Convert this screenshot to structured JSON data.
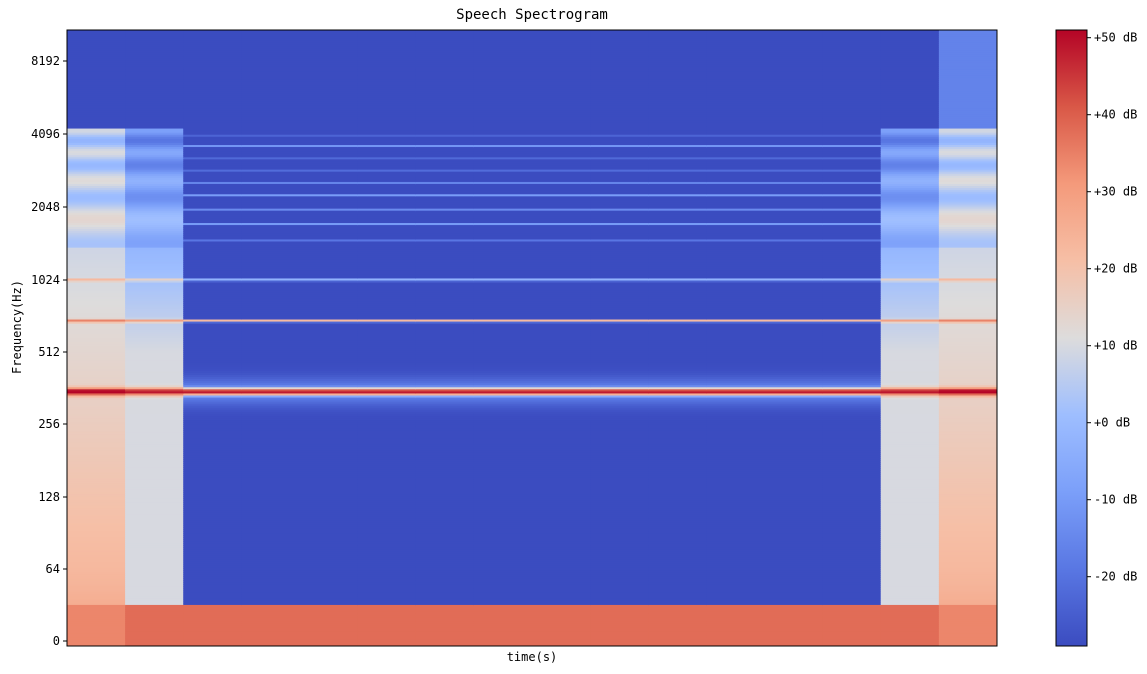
{
  "chart_data": {
    "type": "heatmap",
    "title": "Speech Spectrogram",
    "xlabel": "time(s)",
    "ylabel": "Frequency(Hz)",
    "y_scale": "log2 (symlog near 0)",
    "y_ticks": [
      "0",
      "64",
      "128",
      "256",
      "512",
      "1024",
      "2048",
      "4096",
      "8192"
    ],
    "x_ticks": [],
    "colormap": "coolwarm",
    "colorbar": {
      "ticks": [
        "-20 dB",
        "-10 dB",
        "+0 dB",
        "+10 dB",
        "+20 dB",
        "+30 dB",
        "+40 dB",
        "+50 dB"
      ],
      "tick_values": [
        -20,
        -10,
        0,
        10,
        20,
        30,
        40,
        50
      ],
      "range": [
        -29,
        51
      ]
    },
    "frames": 16,
    "frequency_bins_hz": [
      0,
      32,
      64,
      128,
      256,
      300,
      340,
      370,
      380,
      410,
      512,
      680,
      700,
      800,
      1000,
      1024,
      1500,
      2048,
      3000,
      4096,
      5000,
      8192
    ],
    "notes": "Silence (about -29 dB) between frames 2 and 13; harmonic band near 350 Hz reaches about +50 dB"
  }
}
